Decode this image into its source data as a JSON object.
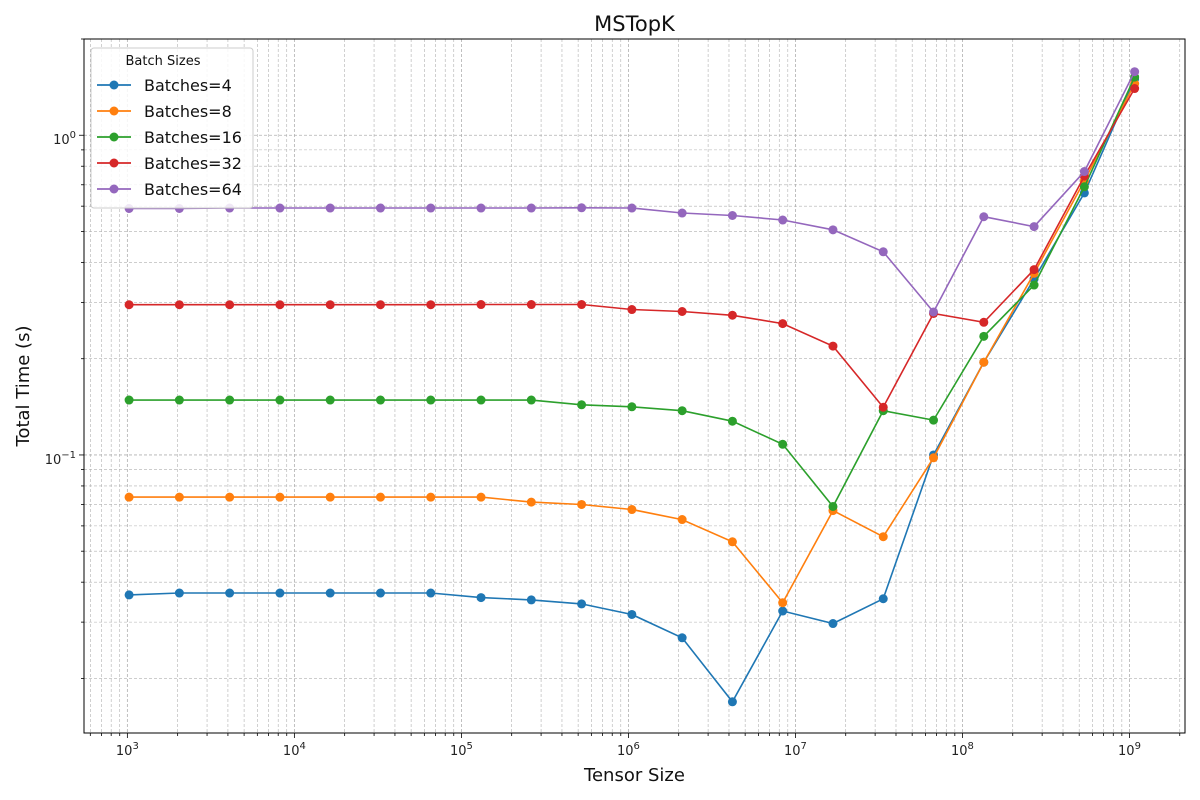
{
  "chart_data": {
    "type": "line",
    "title": "MSTopK",
    "xlabel": "Tensor Size",
    "ylabel": "Total Time (s)",
    "xscale": "log",
    "yscale": "log",
    "xlim": [
      550,
      2150000000
    ],
    "ylim": [
      0.0135,
      2.0
    ],
    "grid": true,
    "legend": {
      "title": "Batch Sizes",
      "placement": "top-left"
    },
    "x": [
      1024,
      2048,
      4096,
      8192,
      16384,
      32768,
      65536,
      131072,
      262144,
      524288,
      1048576,
      2097152,
      4194304,
      8388608,
      16777216,
      33554432,
      67108864,
      134217728,
      268435456,
      536870912,
      1073741824
    ],
    "series": [
      {
        "name": "Batches=4",
        "color": "#1f77b4",
        "values": [
          0.0365,
          0.037,
          0.037,
          0.037,
          0.037,
          0.037,
          0.037,
          0.0358,
          0.0352,
          0.0342,
          0.0317,
          0.0268,
          0.0169,
          0.0325,
          0.0297,
          0.0355,
          0.1,
          0.195,
          0.355,
          0.66,
          1.5
        ]
      },
      {
        "name": "Batches=8",
        "color": "#ff7f0e",
        "values": [
          0.0738,
          0.0738,
          0.0738,
          0.0738,
          0.0738,
          0.0738,
          0.0738,
          0.0738,
          0.0712,
          0.07,
          0.0675,
          0.0628,
          0.0535,
          0.0345,
          0.067,
          0.0555,
          0.098,
          0.195,
          0.37,
          0.72,
          1.45
        ]
      },
      {
        "name": "Batches=16",
        "color": "#2ca02c",
        "values": [
          0.1485,
          0.1485,
          0.1485,
          0.1485,
          0.1485,
          0.1485,
          0.1485,
          0.1485,
          0.1485,
          0.1435,
          0.1415,
          0.1375,
          0.1275,
          0.108,
          0.069,
          0.1375,
          0.1285,
          0.235,
          0.34,
          0.69,
          1.52
        ]
      },
      {
        "name": "Batches=32",
        "color": "#d62728",
        "values": [
          0.295,
          0.295,
          0.295,
          0.295,
          0.295,
          0.295,
          0.295,
          0.2955,
          0.2955,
          0.2955,
          0.285,
          0.281,
          0.2735,
          0.2575,
          0.219,
          0.141,
          0.277,
          0.26,
          0.38,
          0.745,
          1.4
        ]
      },
      {
        "name": "Batches=64",
        "color": "#9467bd",
        "values": [
          0.59,
          0.59,
          0.592,
          0.592,
          0.592,
          0.592,
          0.592,
          0.592,
          0.592,
          0.593,
          0.592,
          0.571,
          0.561,
          0.543,
          0.506,
          0.432,
          0.28,
          0.556,
          0.518,
          0.77,
          1.58
        ]
      }
    ],
    "x_tick_labels": [
      {
        "base": "10",
        "exp": "3"
      },
      {
        "base": "10",
        "exp": "4"
      },
      {
        "base": "10",
        "exp": "5"
      },
      {
        "base": "10",
        "exp": "6"
      },
      {
        "base": "10",
        "exp": "7"
      },
      {
        "base": "10",
        "exp": "8"
      },
      {
        "base": "10",
        "exp": "9"
      }
    ],
    "y_tick_labels": [
      {
        "base": "10",
        "exp": "−1"
      },
      {
        "base": "10",
        "exp": "0"
      }
    ]
  }
}
